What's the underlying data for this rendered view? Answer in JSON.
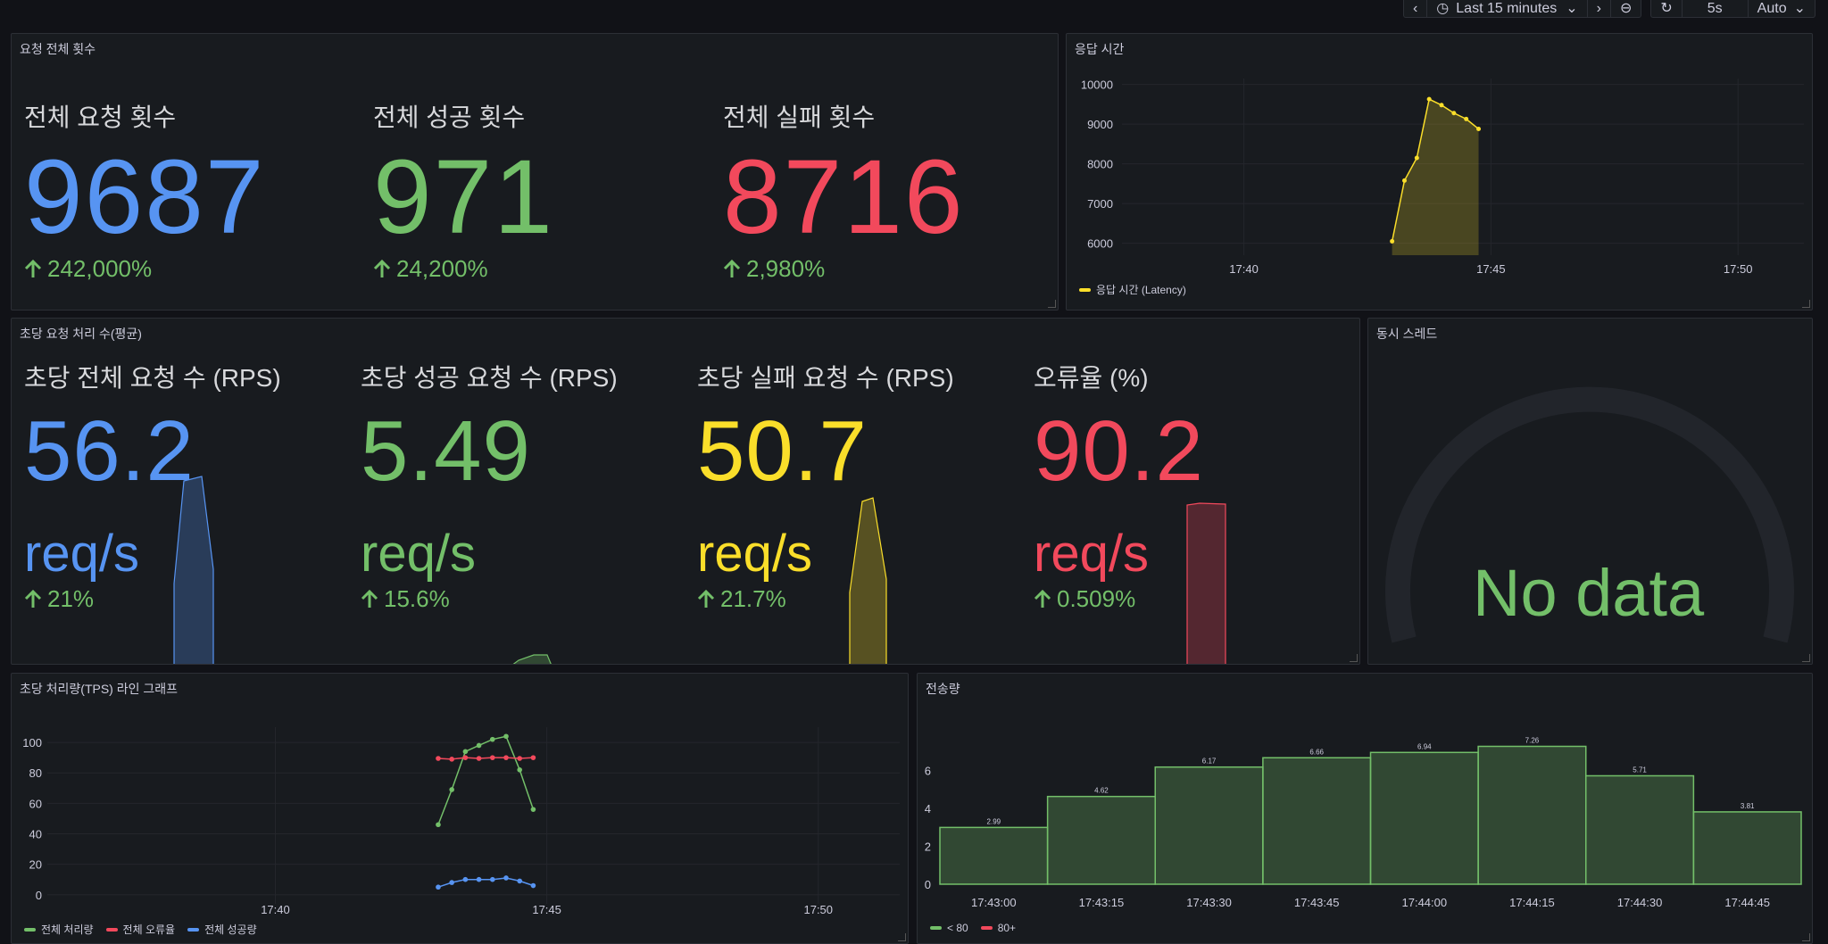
{
  "toolbar": {
    "time_range": "Last 15 minutes",
    "refresh_interval": "5s",
    "auto_label": "Auto"
  },
  "panels": {
    "requests": {
      "title": "요청 전체 횟수",
      "stats": [
        {
          "label": "전체 요청 횟수",
          "value": "9687",
          "delta": "242,000%",
          "color": "#5794f2"
        },
        {
          "label": "전체 성공 횟수",
          "value": "971",
          "delta": "24,200%",
          "color": "#73bf69"
        },
        {
          "label": "전체 실패 횟수",
          "value": "8716",
          "delta": "2,980%",
          "color": "#f2495c"
        }
      ]
    },
    "latency": {
      "title": "응답 시간",
      "legend": "응답 시간 (Latency)"
    },
    "rps": {
      "title": "초당 요청 처리 수(평균)",
      "stats": [
        {
          "label": "초당 전체 요청 수 (RPS)",
          "value": "56.2",
          "unit": "req/s",
          "delta": "21%",
          "color": "#5794f2"
        },
        {
          "label": "초당 성공 요청 수 (RPS)",
          "value": "5.49",
          "unit": "req/s",
          "delta": "15.6%",
          "color": "#73bf69"
        },
        {
          "label": "초당 실패 요청 수 (RPS)",
          "value": "50.7",
          "unit": "req/s",
          "delta": "21.7%",
          "color": "#fade2a"
        },
        {
          "label": "오류율 (%)",
          "value": "90.2",
          "unit": "req/s",
          "delta": "0.509%",
          "color": "#f2495c"
        }
      ]
    },
    "threads": {
      "title": "동시 스레드",
      "no_data": "No data"
    },
    "tps": {
      "title": "초당 처리량(TPS) 라인 그래프"
    },
    "transfer": {
      "title": "전송량"
    }
  },
  "chart_data": [
    {
      "type": "area",
      "panel": "응답 시간",
      "yticks": [
        6000,
        7000,
        8000,
        9000,
        10000
      ],
      "xticks": [
        "17:40",
        "17:45",
        "17:50"
      ],
      "series": [
        {
          "name": "응답 시간 (Latency)",
          "color": "#fade2a",
          "x": [
            "17:43:00",
            "17:43:15",
            "17:43:30",
            "17:43:45",
            "17:44:00",
            "17:44:15",
            "17:44:30",
            "17:44:45"
          ],
          "values": [
            6050,
            7580,
            8150,
            9630,
            9480,
            9280,
            9130,
            8880
          ]
        }
      ]
    },
    {
      "type": "line",
      "panel": "초당 처리량(TPS) 라인 그래프",
      "yticks": [
        0,
        20,
        40,
        60,
        80,
        100
      ],
      "xticks": [
        "17:40",
        "17:45",
        "17:50"
      ],
      "series": [
        {
          "name": "전체 처리량",
          "color": "#73bf69",
          "values": [
            46,
            69,
            94,
            98,
            102,
            104,
            82,
            56
          ]
        },
        {
          "name": "전체 오류율",
          "color": "#f2495c",
          "values": [
            89.5,
            89,
            90,
            89.5,
            90,
            90,
            89.5,
            90
          ]
        },
        {
          "name": "전체 성공량",
          "color": "#5794f2",
          "values": [
            5,
            8,
            10,
            10,
            10,
            11,
            9,
            6
          ]
        }
      ],
      "x": [
        "17:43:00",
        "17:43:15",
        "17:43:30",
        "17:43:45",
        "17:44:00",
        "17:44:15",
        "17:44:30",
        "17:44:45"
      ]
    },
    {
      "type": "bar",
      "panel": "전송량",
      "categories": [
        "17:43:00",
        "17:43:15",
        "17:43:30",
        "17:43:45",
        "17:44:00",
        "17:44:15",
        "17:44:30",
        "17:44:45"
      ],
      "values": [
        2.99,
        4.62,
        6.17,
        6.66,
        6.94,
        7.26,
        5.71,
        3.81
      ],
      "yticks": [
        0,
        2,
        4,
        6
      ],
      "legend": [
        {
          "name": "< 80",
          "color": "#73bf69"
        },
        {
          "name": "80+",
          "color": "#f2495c"
        }
      ]
    }
  ]
}
